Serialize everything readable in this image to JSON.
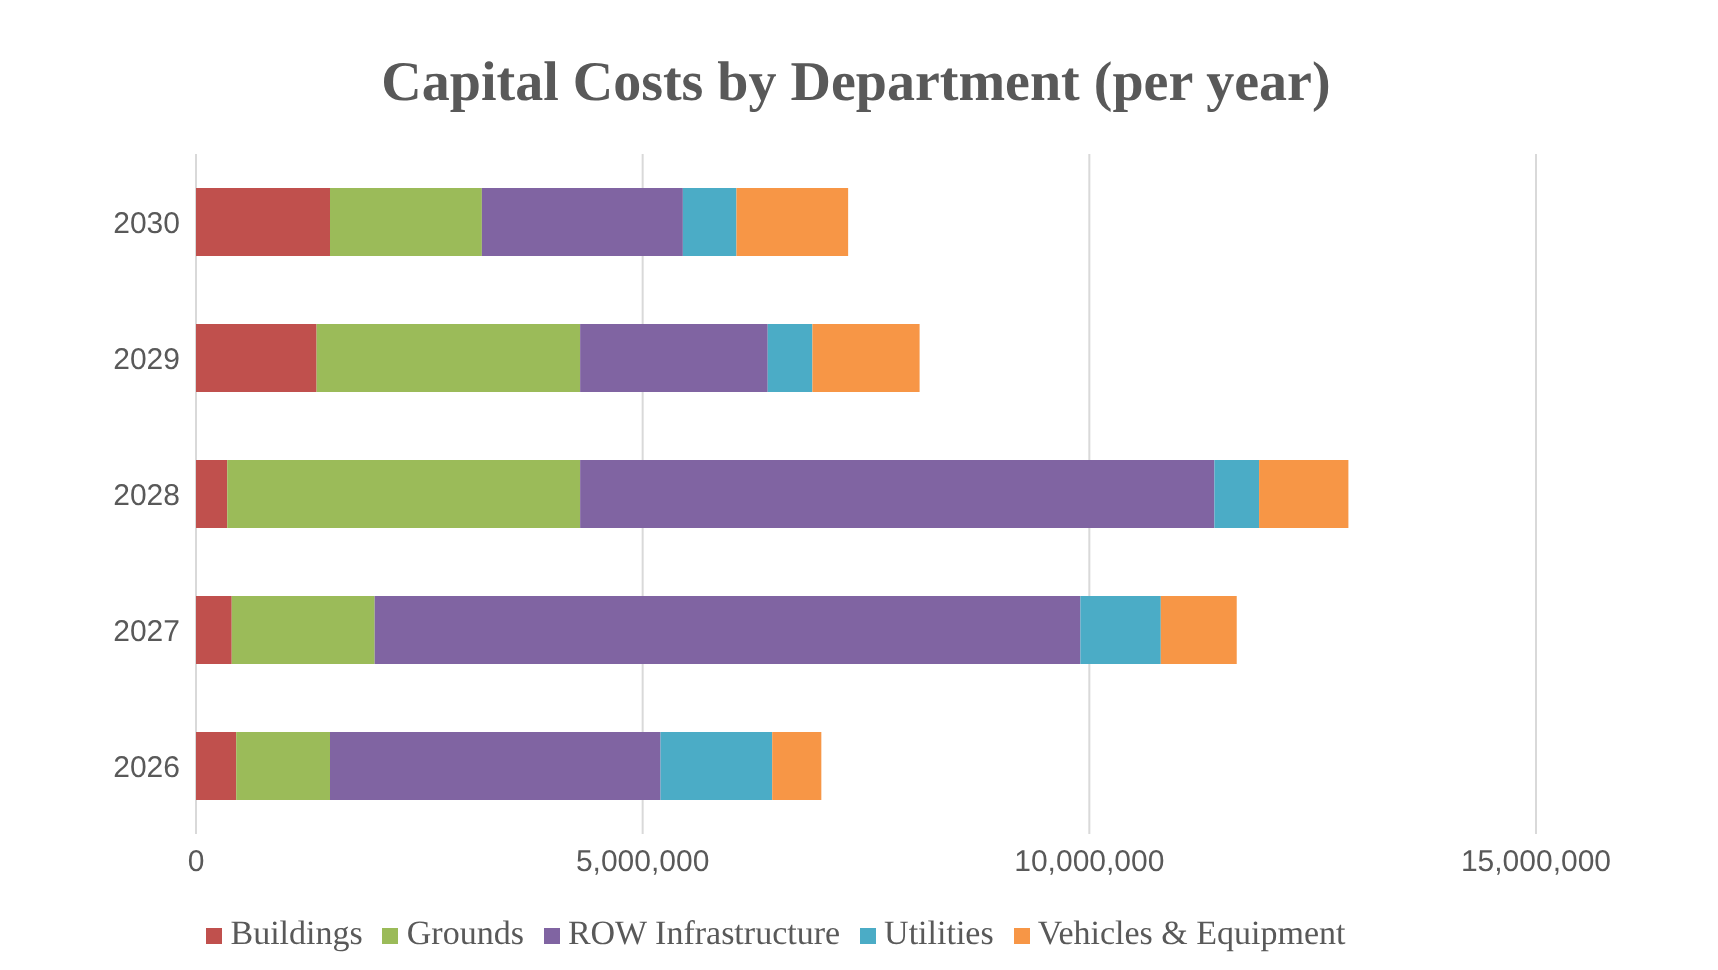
{
  "chart_data": {
    "type": "bar",
    "orientation": "horizontal",
    "stacked": true,
    "title": "Capital Costs by Department (per year)",
    "categories": [
      "2030",
      "2029",
      "2028",
      "2027",
      "2026"
    ],
    "series": [
      {
        "name": "Buildings",
        "color": "#c0504d",
        "values": [
          1500000,
          1350000,
          350000,
          400000,
          450000
        ]
      },
      {
        "name": "Grounds",
        "color": "#9bbb59",
        "values": [
          1700000,
          2950000,
          3950000,
          1600000,
          1050000
        ]
      },
      {
        "name": "ROW Infrastructure",
        "color": "#8064a2",
        "values": [
          2250000,
          2100000,
          7100000,
          7900000,
          3700000
        ]
      },
      {
        "name": "Utilities",
        "color": "#4bacc6",
        "values": [
          600000,
          500000,
          500000,
          900000,
          1250000
        ]
      },
      {
        "name": "Vehicles & Equipment",
        "color": "#f79646",
        "values": [
          1250000,
          1200000,
          1000000,
          850000,
          550000
        ]
      }
    ],
    "xlim": [
      0,
      15000000
    ],
    "xticks": [
      0,
      {
        "value": 5000000,
        "label": "5,000,000"
      },
      {
        "value": 10000000,
        "label": "10,000,000"
      },
      {
        "value": 15000000,
        "label": "15,000,000"
      }
    ],
    "grid": "x",
    "legend": "bottom"
  }
}
